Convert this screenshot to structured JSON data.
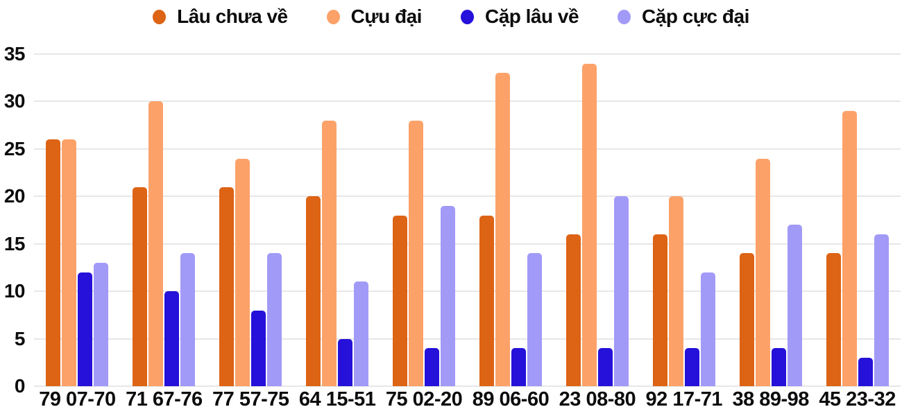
{
  "chart_data": {
    "type": "bar",
    "title": "",
    "xlabel": "",
    "ylabel": "",
    "categories": [
      "79 07-70",
      "71 67-76",
      "77 57-75",
      "64 15-51",
      "75 02-20",
      "89 06-60",
      "23 08-80",
      "92 17-71",
      "38 89-98",
      "45 23-32"
    ],
    "series": [
      {
        "name": "Lâu chưa về",
        "color": "#dd6315",
        "values": [
          26,
          21,
          21,
          20,
          18,
          18,
          16,
          16,
          14,
          14
        ]
      },
      {
        "name": "Cựu đại",
        "color": "#fca269",
        "values": [
          26,
          30,
          24,
          28,
          28,
          33,
          34,
          20,
          24,
          29
        ]
      },
      {
        "name": "Cặp lâu về",
        "color": "#2511d9",
        "values": [
          12,
          10,
          8,
          5,
          4,
          4,
          4,
          4,
          4,
          3
        ]
      },
      {
        "name": "Cặp cực đại",
        "color": "#a29af7",
        "values": [
          13,
          14,
          14,
          11,
          19,
          14,
          20,
          12,
          17,
          16
        ]
      }
    ],
    "ylim": [
      0,
      35
    ],
    "yticks": [
      0,
      5,
      10,
      15,
      20,
      25,
      30,
      35
    ],
    "grid": "horizontal-only",
    "legend_position": "top-center"
  },
  "colors": {
    "text": "#0c0c0c",
    "gridline": "#e7e7e7",
    "background": "#ffffff"
  }
}
